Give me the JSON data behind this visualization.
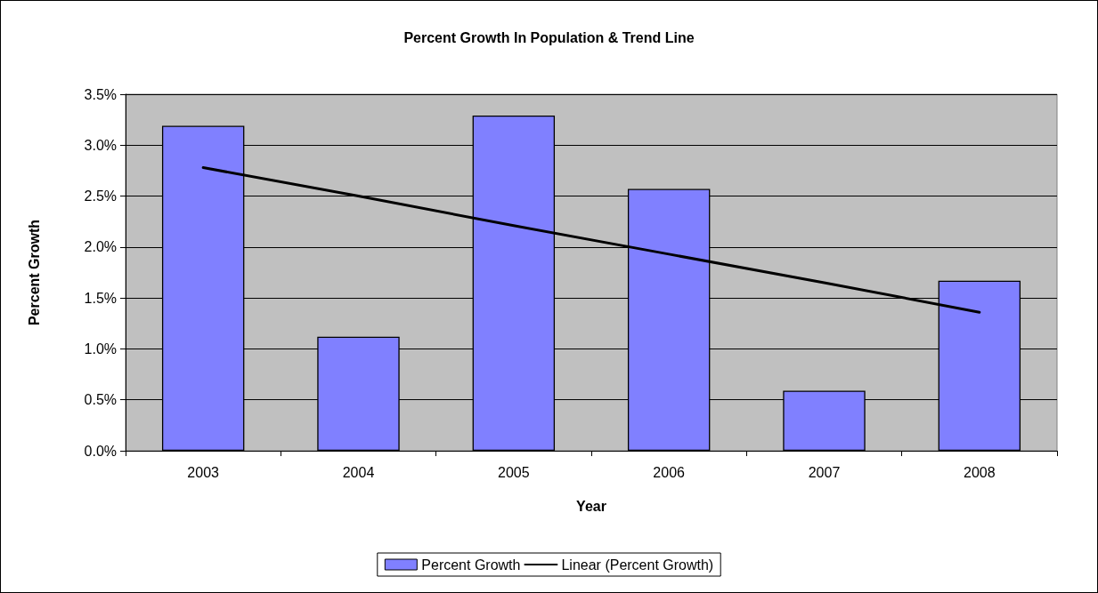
{
  "chart_data": {
    "type": "bar",
    "title": "Percent Growth In Population & Trend Line",
    "xlabel": "Year",
    "ylabel": "Percent Growth",
    "categories": [
      "2003",
      "2004",
      "2005",
      "2006",
      "2007",
      "2008"
    ],
    "series": [
      {
        "name": "Percent Growth",
        "color": "#8080ff",
        "values": [
          3.19,
          1.12,
          3.29,
          2.57,
          0.59,
          1.67
        ]
      },
      {
        "name": "Linear (Percent Growth)",
        "type": "line",
        "color": "#000000",
        "marker": "none",
        "line_style": "solid",
        "values": [
          2.78,
          2.5,
          2.21,
          1.93,
          1.65,
          1.36
        ]
      }
    ],
    "ylim": [
      0,
      3.5
    ],
    "yticks": [
      {
        "value": 0,
        "label": "0.0%"
      },
      {
        "value": 0.5,
        "label": "0.5%"
      },
      {
        "value": 1,
        "label": "1.0%"
      },
      {
        "value": 1.5,
        "label": "1.5%"
      },
      {
        "value": 2,
        "label": "2.0%"
      },
      {
        "value": 2.5,
        "label": "2.5%"
      },
      {
        "value": 3,
        "label": "3.0%"
      },
      {
        "value": 3.5,
        "label": "3.5%"
      }
    ],
    "grid": "y",
    "legend": "bottom"
  }
}
